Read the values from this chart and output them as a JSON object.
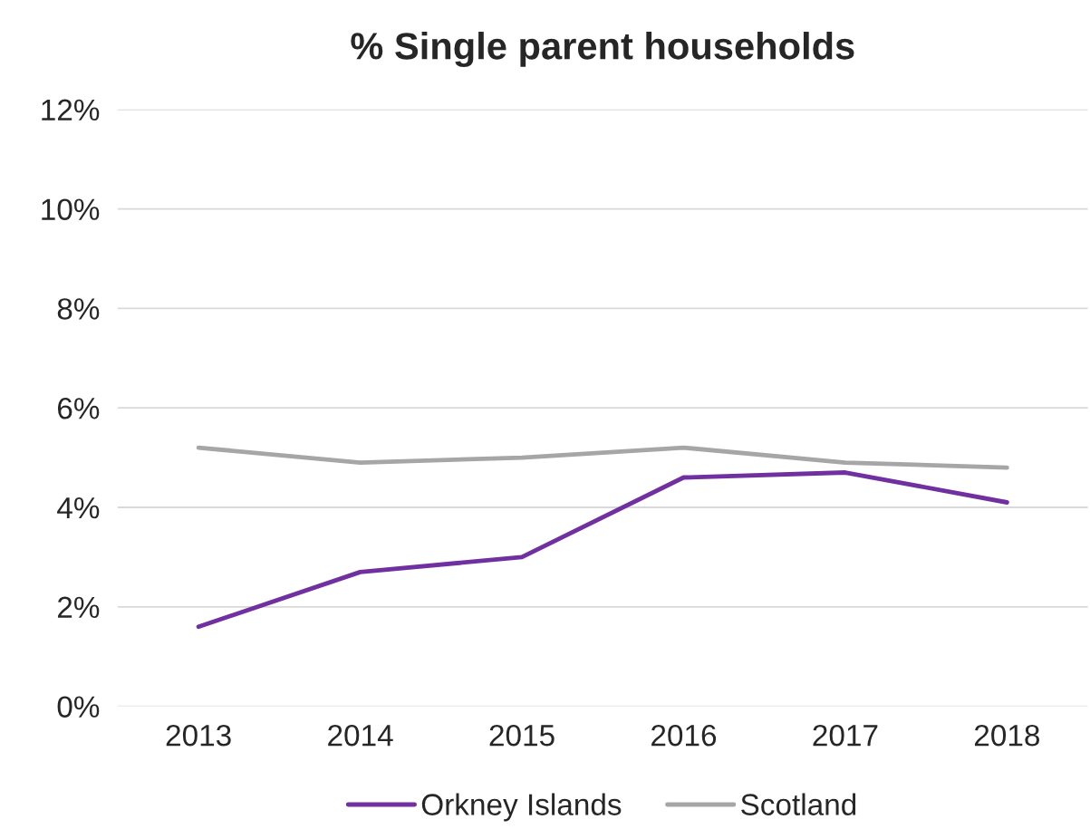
{
  "chart_data": {
    "type": "line",
    "title": "% Single parent households",
    "categories": [
      "2013",
      "2014",
      "2015",
      "2016",
      "2017",
      "2018"
    ],
    "series": [
      {
        "name": "Orkney Islands",
        "color": "#7030a0",
        "values": [
          1.6,
          2.7,
          3.0,
          4.6,
          4.7,
          4.1
        ]
      },
      {
        "name": "Scotland",
        "color": "#a6a6a6",
        "values": [
          5.2,
          4.9,
          5.0,
          5.2,
          4.9,
          4.8
        ]
      }
    ],
    "ylim": [
      0,
      12
    ],
    "yticks": [
      {
        "value": 0,
        "label": "0%"
      },
      {
        "value": 2,
        "label": "2%"
      },
      {
        "value": 4,
        "label": "4%"
      },
      {
        "value": 6,
        "label": "6%"
      },
      {
        "value": 8,
        "label": "8%"
      },
      {
        "value": 10,
        "label": "10%"
      },
      {
        "value": 12,
        "label": "12%"
      }
    ],
    "grid": "y",
    "legend": "bottom",
    "marker": "none",
    "line_style": "solid"
  }
}
